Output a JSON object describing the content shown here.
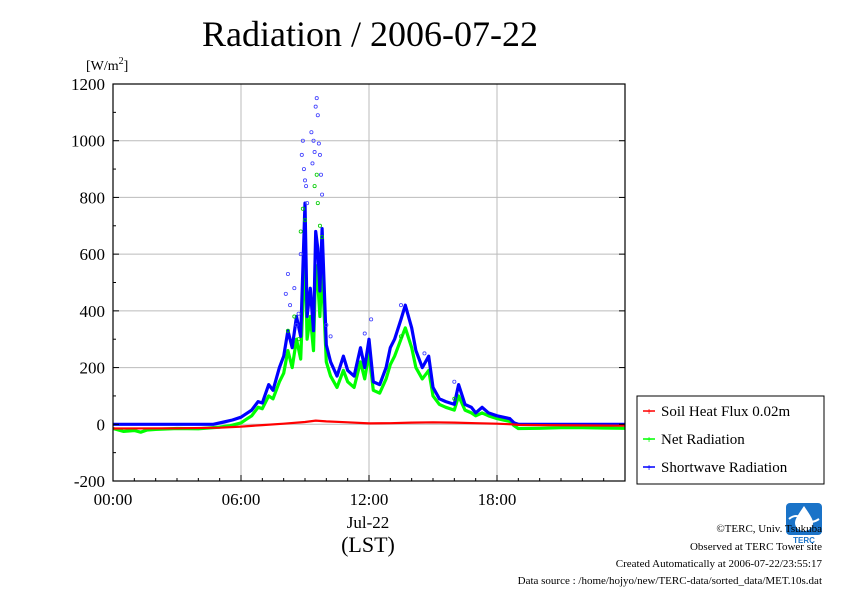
{
  "chart_data": {
    "type": "line",
    "title": "Radiation / 2006-07-22",
    "ylabel": "[W/m2]",
    "ylabel_base": "[W/m",
    "ylabel_sup": "2",
    "ylabel_end": "]",
    "xlabel_date": "Jul-22",
    "xlabel_unit": "(LST)",
    "ylim": [
      -200,
      1200
    ],
    "xlim": [
      0,
      24
    ],
    "yticks": [
      -200,
      0,
      200,
      400,
      600,
      800,
      1000,
      1200
    ],
    "xticks": [
      {
        "value": 0,
        "label": "00:00"
      },
      {
        "value": 6,
        "label": "06:00"
      },
      {
        "value": 12,
        "label": "12:00"
      },
      {
        "value": 18,
        "label": "18:00"
      }
    ],
    "grid": true,
    "legend_position": "right",
    "series": [
      {
        "name": "Soil Heat Flux 0.02m",
        "color": "#ff0000",
        "x": [
          0,
          3,
          5,
          6,
          7,
          8,
          9,
          9.5,
          10,
          11,
          12,
          13,
          14,
          15,
          16,
          17,
          18,
          18.7,
          19,
          20,
          22,
          24
        ],
        "y": [
          -15,
          -14,
          -12,
          -8,
          -3,
          2,
          8,
          13,
          10,
          7,
          3,
          4,
          6,
          7,
          6,
          4,
          2,
          0,
          -2,
          -3,
          -4,
          -5
        ]
      },
      {
        "name": "Net Radiation",
        "color": "#00ff00",
        "x": [
          0,
          0.5,
          1,
          1.3,
          1.6,
          2,
          3,
          4,
          5,
          5.5,
          6,
          6.3,
          6.5,
          6.8,
          7,
          7.3,
          7.5,
          7.8,
          8,
          8.2,
          8.4,
          8.6,
          8.8,
          9,
          9.1,
          9.25,
          9.4,
          9.5,
          9.6,
          9.7,
          9.8,
          10,
          10.2,
          10.5,
          10.8,
          11,
          11.3,
          11.6,
          11.8,
          12,
          12.2,
          12.5,
          12.8,
          13,
          13.2,
          13.5,
          13.7,
          14,
          14.2,
          14.5,
          14.8,
          15,
          15.3,
          15.6,
          16,
          16.2,
          16.5,
          16.8,
          17,
          17.3,
          17.6,
          18,
          18.3,
          18.6,
          18.8,
          19,
          20,
          21,
          22,
          23,
          24
        ],
        "y": [
          -15,
          -25,
          -22,
          -28,
          -20,
          -18,
          -15,
          -16,
          -10,
          -5,
          5,
          20,
          30,
          60,
          55,
          100,
          90,
          150,
          180,
          260,
          200,
          300,
          230,
          620,
          300,
          380,
          260,
          560,
          500,
          380,
          560,
          220,
          170,
          130,
          190,
          150,
          130,
          220,
          160,
          250,
          120,
          110,
          160,
          210,
          240,
          300,
          340,
          270,
          200,
          160,
          190,
          100,
          70,
          60,
          50,
          100,
          50,
          40,
          30,
          40,
          30,
          20,
          15,
          10,
          -5,
          -15,
          -14,
          -12,
          -12,
          -13,
          -14
        ]
      },
      {
        "name": "Shortwave Radiation",
        "color": "#0000ff",
        "x": [
          0,
          1,
          2,
          3,
          4,
          4.7,
          5.2,
          5.6,
          6,
          6.3,
          6.5,
          6.8,
          7,
          7.3,
          7.5,
          7.8,
          8,
          8.2,
          8.4,
          8.6,
          8.8,
          9,
          9.1,
          9.25,
          9.4,
          9.5,
          9.6,
          9.7,
          9.8,
          10,
          10.2,
          10.5,
          10.8,
          11,
          11.3,
          11.6,
          11.8,
          12,
          12.2,
          12.5,
          12.8,
          13,
          13.2,
          13.5,
          13.7,
          14,
          14.2,
          14.5,
          14.8,
          15,
          15.3,
          15.6,
          16,
          16.2,
          16.5,
          16.8,
          17,
          17.3,
          17.6,
          18,
          18.3,
          18.6,
          18.8,
          19,
          20,
          21,
          22,
          23,
          24
        ],
        "y": [
          0,
          0,
          0,
          0,
          0,
          0,
          8,
          15,
          25,
          40,
          50,
          80,
          75,
          140,
          120,
          200,
          240,
          330,
          270,
          380,
          310,
          780,
          380,
          480,
          330,
          680,
          620,
          470,
          690,
          280,
          220,
          170,
          240,
          190,
          170,
          270,
          200,
          300,
          150,
          140,
          200,
          270,
          300,
          370,
          420,
          340,
          260,
          200,
          240,
          130,
          90,
          80,
          70,
          140,
          70,
          60,
          40,
          60,
          40,
          30,
          25,
          20,
          5,
          0,
          0,
          0,
          0,
          0,
          0
        ]
      }
    ],
    "scatter_overlay": {
      "blue_points": [
        [
          8.1,
          460
        ],
        [
          8.2,
          530
        ],
        [
          8.3,
          420
        ],
        [
          8.5,
          480
        ],
        [
          8.6,
          350
        ],
        [
          8.7,
          390
        ],
        [
          8.8,
          600
        ],
        [
          8.85,
          950
        ],
        [
          8.9,
          1000
        ],
        [
          8.95,
          900
        ],
        [
          9.0,
          860
        ],
        [
          9.05,
          840
        ],
        [
          9.1,
          780
        ],
        [
          9.3,
          1030
        ],
        [
          9.35,
          920
        ],
        [
          9.4,
          1000
        ],
        [
          9.45,
          960
        ],
        [
          9.5,
          1120
        ],
        [
          9.55,
          1150
        ],
        [
          9.6,
          1090
        ],
        [
          9.65,
          990
        ],
        [
          9.7,
          950
        ],
        [
          9.75,
          880
        ],
        [
          9.8,
          810
        ],
        [
          10.0,
          350
        ],
        [
          10.2,
          310
        ],
        [
          11.8,
          320
        ],
        [
          12.1,
          370
        ],
        [
          13.5,
          420
        ],
        [
          14.6,
          250
        ],
        [
          16.0,
          150
        ]
      ],
      "green_points": [
        [
          8.2,
          330
        ],
        [
          8.5,
          380
        ],
        [
          8.7,
          300
        ],
        [
          8.8,
          680
        ],
        [
          8.9,
          760
        ],
        [
          9.0,
          720
        ],
        [
          9.45,
          840
        ],
        [
          9.55,
          880
        ],
        [
          9.6,
          780
        ],
        [
          9.7,
          700
        ],
        [
          9.8,
          660
        ],
        [
          13.5,
          310
        ],
        [
          16.0,
          90
        ]
      ]
    }
  },
  "footer": {
    "copyright": "©TERC, Univ. Tsukuba",
    "observed": "Observed at TERC Tower site",
    "created": "Created Automatically at 2006-07-22/23:55:17",
    "source": "Data source : /home/hojyo/new/TERC-data/sorted_data/MET.10s.dat"
  },
  "logo": {
    "text": "TERC",
    "color": "#1a73c8"
  }
}
